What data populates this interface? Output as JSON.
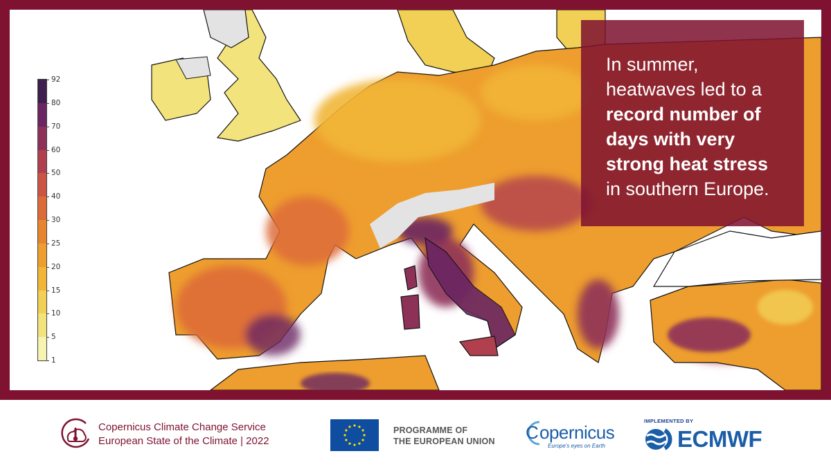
{
  "callout": {
    "line1": "In summer,",
    "line2": "heatwaves led to a",
    "bold_text": "record number of days with very strong heat stress",
    "line_end": "in southern Europe."
  },
  "colorbar": {
    "ticks": [
      "1",
      "5",
      "10",
      "15",
      "20",
      "25",
      "30",
      "40",
      "50",
      "60",
      "70",
      "80",
      "92"
    ],
    "colors": [
      "#f7f3b0",
      "#f3e37c",
      "#f1d055",
      "#f1b637",
      "#ee9e2e",
      "#e7852f",
      "#dd6b38",
      "#cc5444",
      "#b1404f",
      "#8e3159",
      "#6a2563",
      "#3e1d4f",
      "#1c1a2b"
    ]
  },
  "map": {
    "land_colors": {
      "low": "#f3e37c",
      "light_orange": "#f1b637",
      "orange": "#ee9e2e",
      "deep_orange": "#e7852f",
      "red_orange": "#dd6b38",
      "magenta": "#b1404f",
      "purple": "#6a2563",
      "no_data": "#e3e3e3",
      "sea": "#ffffff",
      "coastline": "#111111"
    }
  },
  "footer": {
    "c3s_line1": "Copernicus Climate Change Service",
    "c3s_line2": "European State of the Climate | 2022",
    "eu_line1": "PROGRAMME OF",
    "eu_line2": "THE EUROPEAN UNION",
    "copernicus_word": "opernicus",
    "copernicus_c": "C",
    "copernicus_tagline": "Europe's eyes on Earth",
    "ecmwf_implemented": "IMPLEMENTED BY",
    "ecmwf_word": "ECMWF"
  },
  "colors": {
    "frame": "#7e1230",
    "brand_blue": "#1a5da8",
    "eu_blue": "#0f4da1",
    "eu_star": "#ffdd00"
  }
}
